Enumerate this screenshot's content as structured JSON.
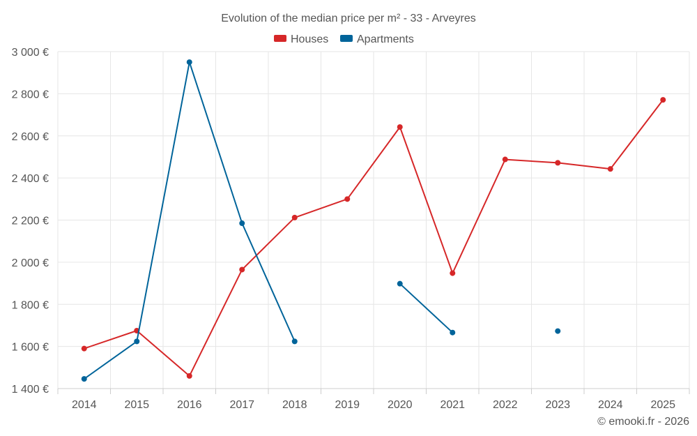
{
  "chart_data": {
    "type": "line",
    "title": "Evolution of the median price per m² - 33 - Arveyres",
    "categories": [
      "2014",
      "2015",
      "2016",
      "2017",
      "2018",
      "2019",
      "2020",
      "2021",
      "2022",
      "2023",
      "2024",
      "2025"
    ],
    "series": [
      {
        "name": "Houses",
        "color": "#d62728",
        "values": [
          1590,
          1675,
          1460,
          1965,
          2212,
          2300,
          2642,
          1948,
          2488,
          2472,
          2443,
          2771
        ]
      },
      {
        "name": "Apartments",
        "color": "#00649a",
        "values": [
          1446,
          1624,
          2950,
          2185,
          1624,
          null,
          1898,
          1666,
          null,
          1673,
          null,
          null
        ]
      }
    ],
    "ylim": [
      1400,
      3000
    ],
    "yticks": [
      1400,
      1600,
      1800,
      2000,
      2200,
      2400,
      2600,
      2800,
      3000
    ],
    "ytick_labels": [
      "1 400 €",
      "1 600 €",
      "1 800 €",
      "2 000 €",
      "2 200 €",
      "2 400 €",
      "2 600 €",
      "2 800 €",
      "3 000 €"
    ],
    "legend_position": "top-center",
    "grid": true,
    "credit": "© emooki.fr - 2026"
  }
}
